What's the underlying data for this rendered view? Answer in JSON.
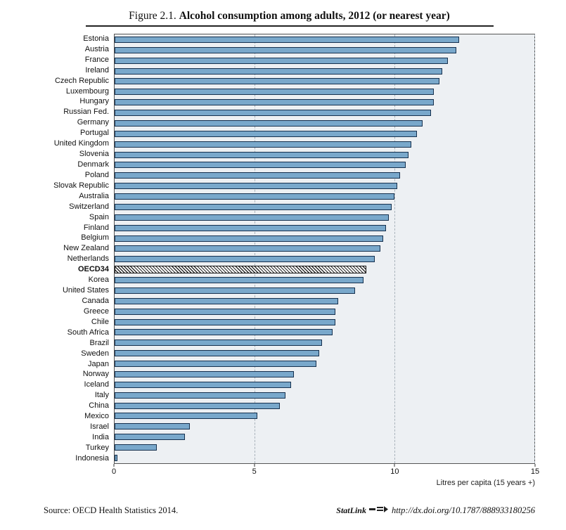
{
  "figure": {
    "label": "Figure 2.1.",
    "title": "Alcohol consumption among adults, 2012 (or nearest year)"
  },
  "chart_data": {
    "type": "bar",
    "orientation": "horizontal",
    "title": "Figure 2.1. Alcohol consumption among adults, 2012 (or nearest year)",
    "xlabel": "Litres per capita (15 years +)",
    "ylabel": "",
    "xlim": [
      0,
      15
    ],
    "xticks": [
      0,
      5,
      10,
      15
    ],
    "grid": true,
    "legend": "none",
    "highlight_category": "OECD34",
    "bar_color": "#79a8cb",
    "bar_border_color": "#15304e",
    "plot_bg": "#edf0f3",
    "categories": [
      "Estonia",
      "Austria",
      "France",
      "Ireland",
      "Czech Republic",
      "Luxembourg",
      "Hungary",
      "Russian Fed.",
      "Germany",
      "Portugal",
      "United Kingdom",
      "Slovenia",
      "Denmark",
      "Poland",
      "Slovak Republic",
      "Australia",
      "Switzerland",
      "Spain",
      "Finland",
      "Belgium",
      "New Zealand",
      "Netherlands",
      "OECD34",
      "Korea",
      "United States",
      "Canada",
      "Greece",
      "Chile",
      "South Africa",
      "Brazil",
      "Sweden",
      "Japan",
      "Norway",
      "Iceland",
      "Italy",
      "China",
      "Mexico",
      "Israel",
      "India",
      "Turkey",
      "Indonesia"
    ],
    "values": [
      12.3,
      12.2,
      11.9,
      11.7,
      11.6,
      11.4,
      11.4,
      11.3,
      11.0,
      10.8,
      10.6,
      10.5,
      10.4,
      10.2,
      10.1,
      10.0,
      9.9,
      9.8,
      9.7,
      9.6,
      9.5,
      9.3,
      9.0,
      8.9,
      8.6,
      8.0,
      7.9,
      7.9,
      7.8,
      7.4,
      7.3,
      7.2,
      6.4,
      6.3,
      6.1,
      5.9,
      5.1,
      2.7,
      2.5,
      1.5,
      0.1
    ]
  },
  "footer": {
    "source": "Source: OECD Health Statistics 2014.",
    "statlink_label": "StatLink",
    "statlink_url": "http://dx.doi.org/10.1787/888933180256"
  }
}
